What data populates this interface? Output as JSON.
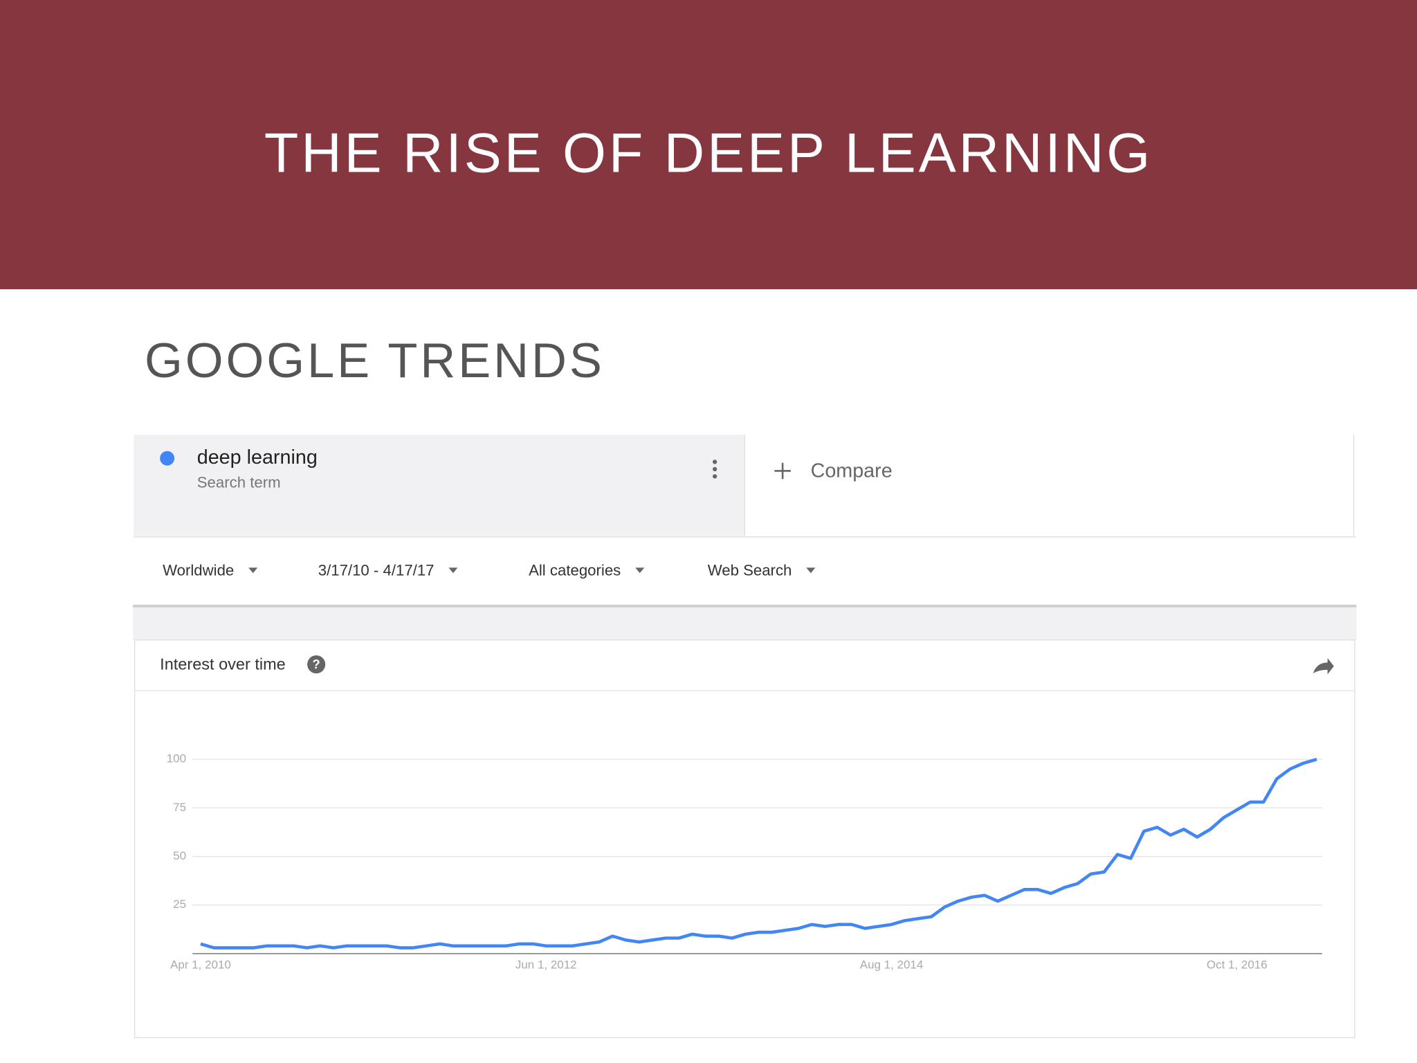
{
  "slide": {
    "title": "THE RISE OF DEEP LEARNING",
    "subtitle": "GOOGLE TRENDS"
  },
  "search": {
    "term_type": "Search term",
    "compare": "Compare"
  },
  "filters": [
    "Worldwide",
    "3/17/10 - 4/17/17",
    "All categories",
    "Web Search"
  ],
  "chart_data": {
    "type": "line",
    "title": "Interest over time",
    "categories": [
      "Apr 1, 2010",
      null,
      null,
      null,
      null,
      null,
      null,
      null,
      null,
      null,
      null,
      null,
      null,
      null,
      null,
      null,
      null,
      null,
      null,
      null,
      null,
      null,
      null,
      null,
      null,
      null,
      "Jun 1, 2012",
      null,
      null,
      null,
      null,
      null,
      null,
      null,
      null,
      null,
      null,
      null,
      null,
      null,
      null,
      null,
      null,
      null,
      null,
      null,
      null,
      null,
      null,
      null,
      null,
      null,
      "Aug 1, 2014",
      null,
      null,
      null,
      null,
      null,
      null,
      null,
      null,
      null,
      null,
      null,
      null,
      null,
      null,
      null,
      null,
      null,
      null,
      null,
      null,
      null,
      null,
      null,
      null,
      null,
      "Oct 1, 2016",
      null,
      null,
      null,
      null,
      null,
      null
    ],
    "series": [
      {
        "name": "deep learning",
        "color": "#4285f4",
        "values": [
          5,
          3,
          3,
          3,
          3,
          4,
          4,
          4,
          3,
          4,
          3,
          4,
          4,
          4,
          4,
          3,
          3,
          4,
          5,
          4,
          4,
          4,
          4,
          4,
          5,
          5,
          4,
          4,
          4,
          5,
          6,
          9,
          7,
          6,
          7,
          8,
          8,
          10,
          9,
          9,
          8,
          10,
          11,
          11,
          12,
          13,
          15,
          14,
          15,
          15,
          13,
          14,
          15,
          17,
          18,
          19,
          24,
          27,
          29,
          30,
          27,
          30,
          33,
          33,
          31,
          34,
          36,
          41,
          42,
          51,
          49,
          63,
          65,
          61,
          64,
          60,
          64,
          70,
          74,
          78,
          78,
          90,
          95,
          98,
          100
        ]
      }
    ],
    "ylim": [
      0,
      100
    ],
    "yticks": [
      25,
      50,
      75,
      100
    ],
    "grid": true
  }
}
